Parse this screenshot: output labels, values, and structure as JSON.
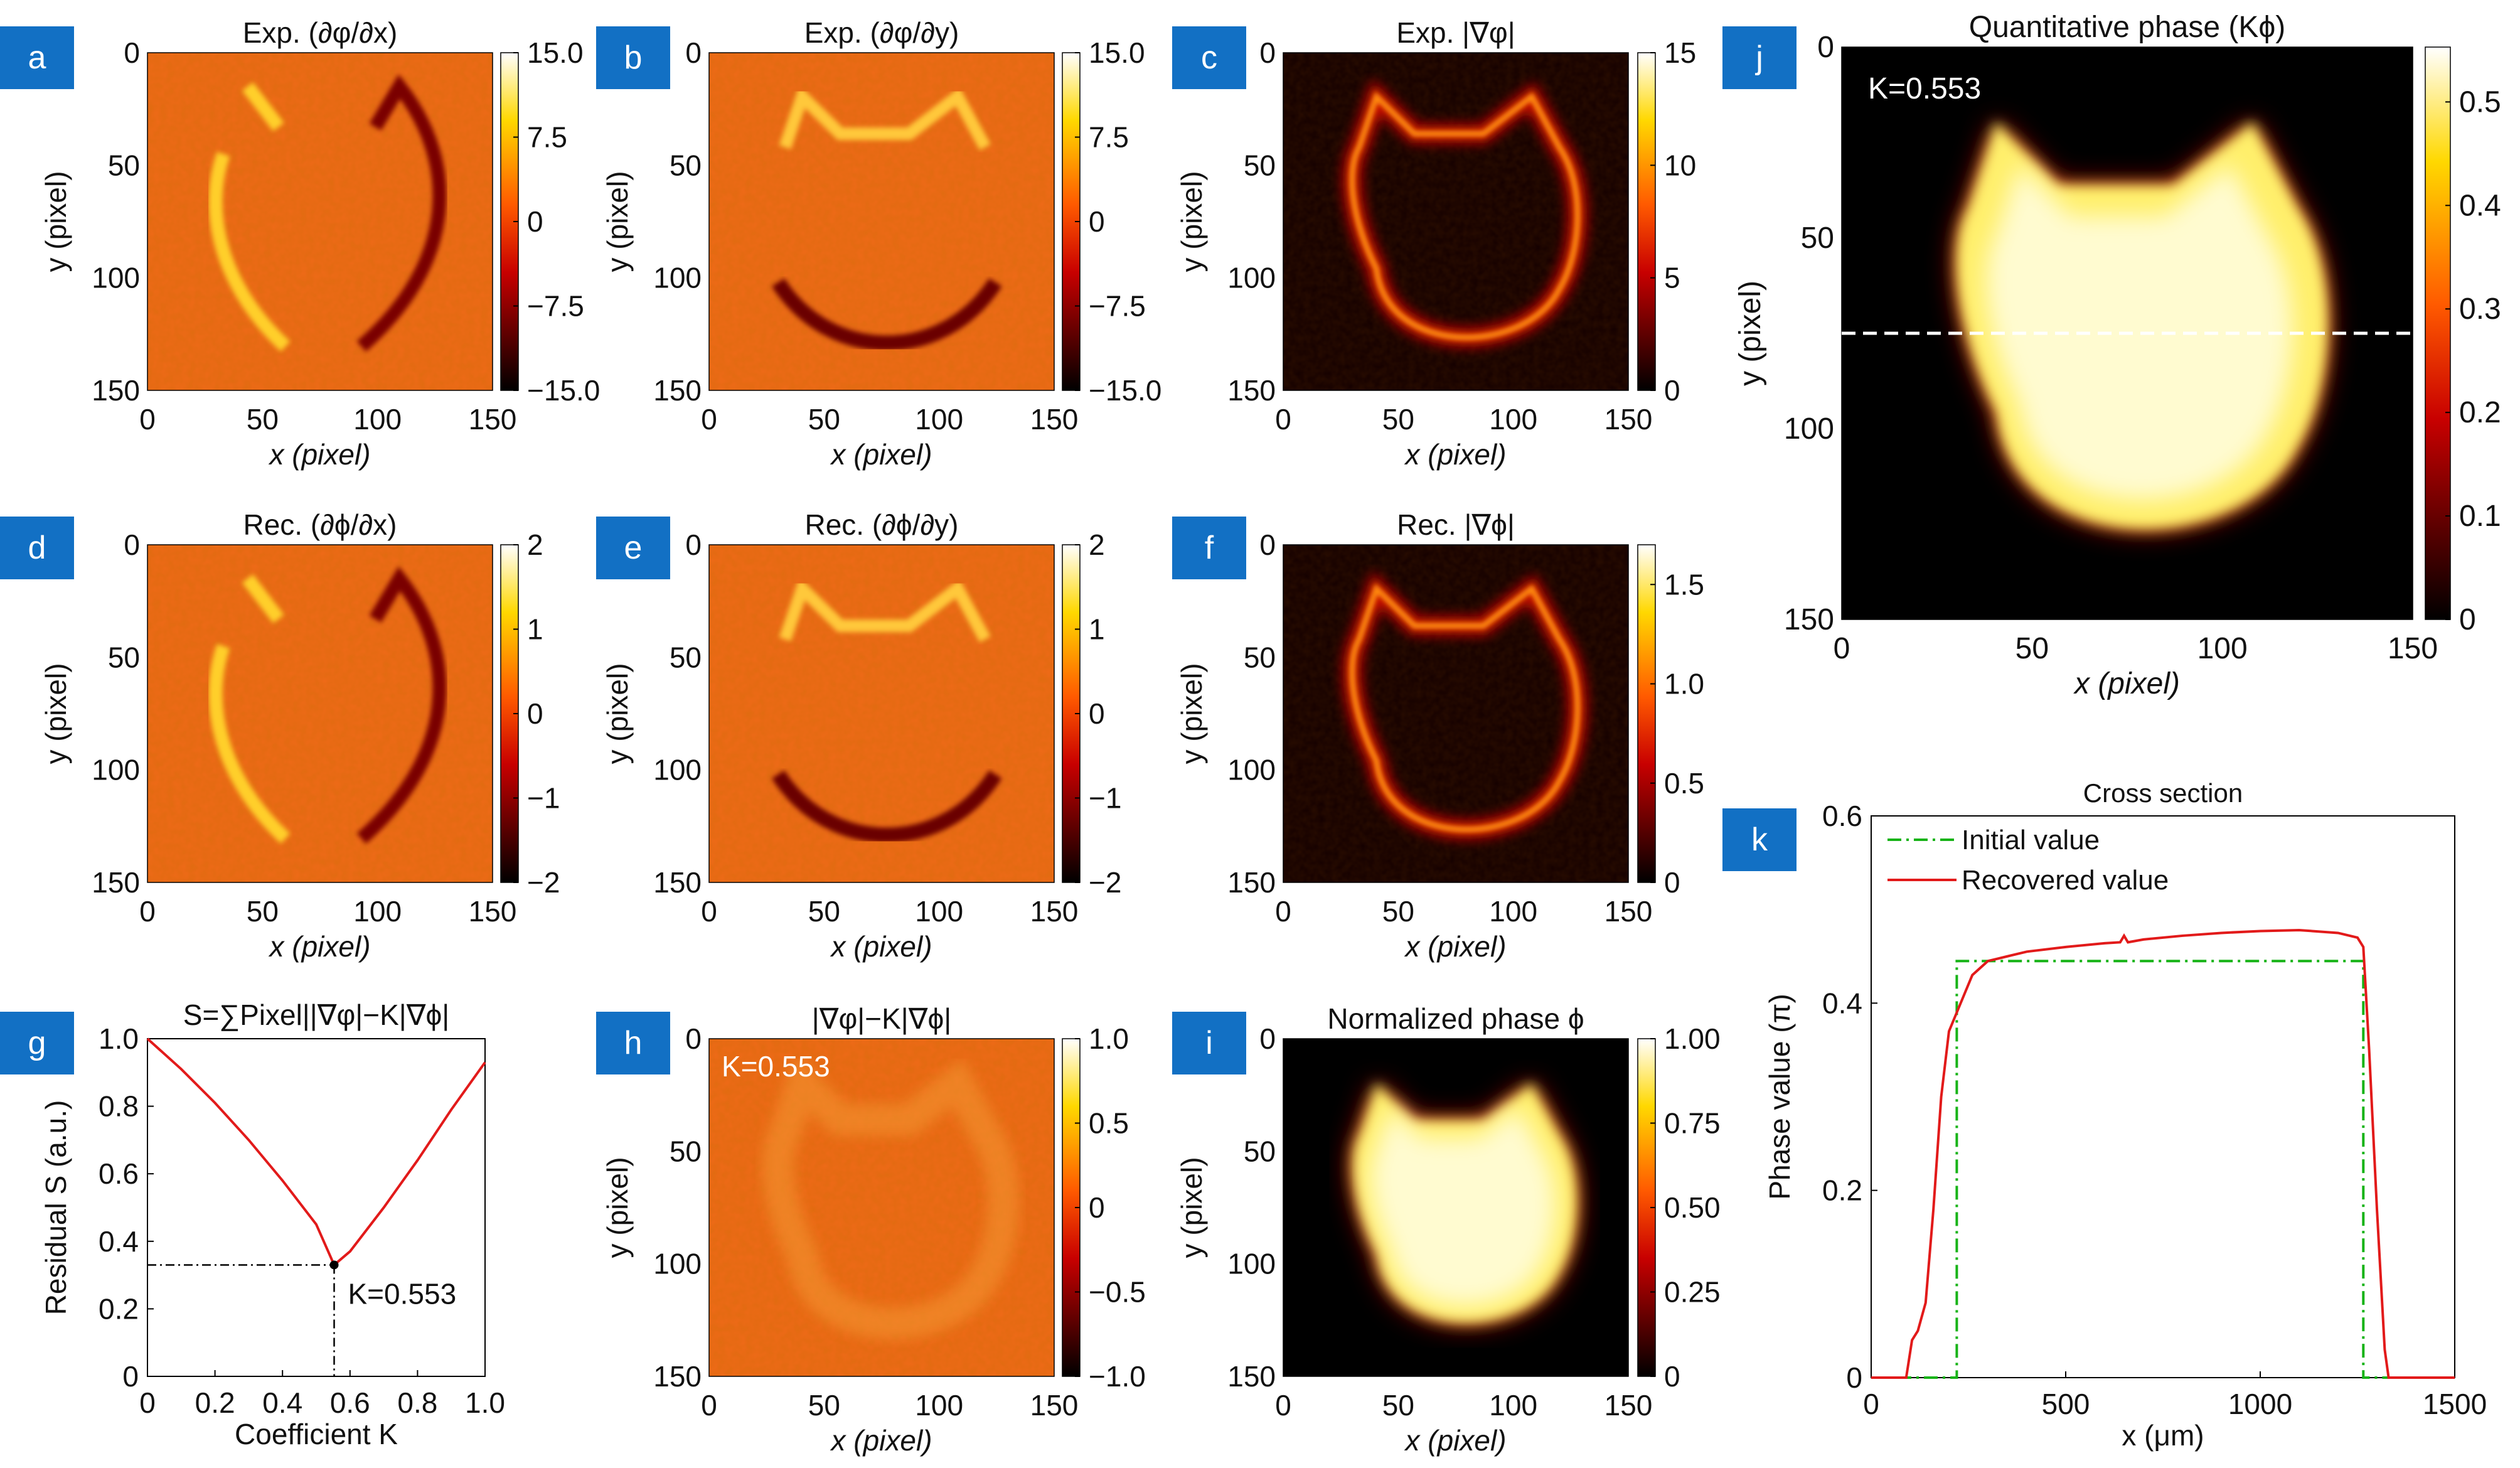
{
  "figure": {
    "panel_letters": [
      "a",
      "b",
      "c",
      "d",
      "e",
      "f",
      "g",
      "h",
      "i",
      "j",
      "k"
    ],
    "k_label": "K=0.553"
  },
  "chart_data": [
    {
      "panel": "a",
      "type": "heatmap",
      "title": "Exp. (∂φ/∂x)",
      "xlabel": "x (pixel)",
      "ylabel": "y (pixel)",
      "xlim": [
        0,
        150
      ],
      "ylim": [
        150,
        0
      ],
      "xticks": [
        0,
        50,
        100,
        150
      ],
      "yticks": [
        0,
        50,
        100,
        150
      ],
      "colorbar": {
        "range": [
          -15,
          15
        ],
        "ticks": [
          "15.0",
          "7.5",
          "0",
          "−7.5",
          "−15.0"
        ]
      },
      "pattern": "gradient-x"
    },
    {
      "panel": "b",
      "type": "heatmap",
      "title": "Exp. (∂φ/∂y)",
      "xlabel": "x (pixel)",
      "ylabel": "y (pixel)",
      "xlim": [
        0,
        150
      ],
      "ylim": [
        150,
        0
      ],
      "xticks": [
        0,
        50,
        100,
        150
      ],
      "yticks": [
        0,
        50,
        100,
        150
      ],
      "colorbar": {
        "range": [
          -15,
          15
        ],
        "ticks": [
          "15.0",
          "7.5",
          "0",
          "−7.5",
          "−15.0"
        ]
      },
      "pattern": "gradient-y"
    },
    {
      "panel": "c",
      "type": "heatmap",
      "title": "Exp. |∇φ|",
      "xlabel": "x (pixel)",
      "ylabel": "y (pixel)",
      "xlim": [
        0,
        150
      ],
      "ylim": [
        150,
        0
      ],
      "xticks": [
        0,
        50,
        100,
        150
      ],
      "yticks": [
        0,
        50,
        100,
        150
      ],
      "colorbar": {
        "range": [
          0,
          15
        ],
        "ticks": [
          "15",
          "10",
          "5",
          "0"
        ]
      },
      "pattern": "magnitude"
    },
    {
      "panel": "d",
      "type": "heatmap",
      "title": "Rec. (∂ϕ/∂x)",
      "xlabel": "x (pixel)",
      "ylabel": "y (pixel)",
      "xlim": [
        0,
        150
      ],
      "ylim": [
        150,
        0
      ],
      "xticks": [
        0,
        50,
        100,
        150
      ],
      "yticks": [
        0,
        50,
        100,
        150
      ],
      "colorbar": {
        "range": [
          -2,
          2
        ],
        "ticks": [
          "2",
          "1",
          "0",
          "−1",
          "−2"
        ]
      },
      "pattern": "gradient-x"
    },
    {
      "panel": "e",
      "type": "heatmap",
      "title": "Rec. (∂ϕ/∂y)",
      "xlabel": "x (pixel)",
      "ylabel": "y (pixel)",
      "xlim": [
        0,
        150
      ],
      "ylim": [
        150,
        0
      ],
      "xticks": [
        0,
        50,
        100,
        150
      ],
      "yticks": [
        0,
        50,
        100,
        150
      ],
      "colorbar": {
        "range": [
          -2,
          2
        ],
        "ticks": [
          "2",
          "1",
          "0",
          "−1",
          "−2"
        ]
      },
      "pattern": "gradient-y"
    },
    {
      "panel": "f",
      "type": "heatmap",
      "title": "Rec. |∇ϕ|",
      "xlabel": "x (pixel)",
      "ylabel": "y (pixel)",
      "xlim": [
        0,
        150
      ],
      "ylim": [
        150,
        0
      ],
      "xticks": [
        0,
        50,
        100,
        150
      ],
      "yticks": [
        0,
        50,
        100,
        150
      ],
      "colorbar": {
        "range": [
          0,
          1.7
        ],
        "ticks": [
          "1.5",
          "1.0",
          "0.5",
          "0"
        ]
      },
      "pattern": "magnitude"
    },
    {
      "panel": "g",
      "type": "line",
      "title": "S=∑Pixel||∇φ|−K|∇ϕ|",
      "xlabel": "Coefficient K",
      "ylabel": "Residual S (a.u.)",
      "xlim": [
        0,
        1
      ],
      "ylim": [
        0,
        1
      ],
      "xticks": [
        "0",
        "0.2",
        "0.4",
        "0.6",
        "0.8",
        "1.0"
      ],
      "yticks": [
        "0",
        "0.2",
        "0.4",
        "0.6",
        "0.8",
        "1.0"
      ],
      "series": [
        {
          "x": [
            0,
            0.1,
            0.2,
            0.3,
            0.4,
            0.5,
            0.553,
            0.6,
            0.7,
            0.8,
            0.9,
            1.0
          ],
          "y": [
            1.0,
            0.91,
            0.81,
            0.7,
            0.58,
            0.45,
            0.33,
            0.37,
            0.5,
            0.64,
            0.79,
            0.93
          ]
        }
      ],
      "annotation": {
        "text": "K=0.553",
        "x": 0.553,
        "y": 0.33
      }
    },
    {
      "panel": "h",
      "type": "heatmap",
      "title": "|∇φ|−K|∇ϕ|",
      "annotation": "K=0.553",
      "xlabel": "x (pixel)",
      "ylabel": "y (pixel)",
      "xlim": [
        0,
        150
      ],
      "ylim": [
        150,
        0
      ],
      "xticks": [
        0,
        50,
        100,
        150
      ],
      "yticks": [
        0,
        50,
        100,
        150
      ],
      "colorbar": {
        "range": [
          -1,
          1
        ],
        "ticks": [
          "1.0",
          "0.5",
          "0",
          "−0.5",
          "−1.0"
        ]
      },
      "pattern": "residual"
    },
    {
      "panel": "i",
      "type": "heatmap",
      "title": "Normalized phase ϕ",
      "xlabel": "x (pixel)",
      "ylabel": "y (pixel)",
      "xlim": [
        0,
        150
      ],
      "ylim": [
        150,
        0
      ],
      "xticks": [
        0,
        50,
        100,
        150
      ],
      "yticks": [
        0,
        50,
        100,
        150
      ],
      "colorbar": {
        "range": [
          0,
          1
        ],
        "ticks": [
          "1.00",
          "0.75",
          "0.50",
          "0.25",
          "0"
        ]
      },
      "pattern": "phase"
    },
    {
      "panel": "j",
      "type": "heatmap",
      "title": "Quantitative phase (Kϕ)",
      "annotation": "K=0.553",
      "xlabel": "x (pixel)",
      "ylabel": "y (pixel)",
      "xlim": [
        0,
        150
      ],
      "ylim": [
        150,
        0
      ],
      "xticks": [
        0,
        50,
        100,
        150
      ],
      "yticks": [
        0,
        50,
        100,
        150
      ],
      "colorbar": {
        "range": [
          0,
          0.553
        ],
        "ticks": [
          "0.5",
          "0.4",
          "0.3",
          "0.2",
          "0.1",
          "0"
        ]
      },
      "pattern": "phase",
      "cross_section_y": 75
    },
    {
      "panel": "k",
      "type": "line",
      "title": "Cross section",
      "xlabel": "x (μm)",
      "ylabel": "Phase value (π)",
      "xlim": [
        0,
        1500
      ],
      "ylim": [
        0,
        0.6
      ],
      "xticks": [
        "0",
        "500",
        "1000",
        "1500"
      ],
      "yticks": [
        "0",
        "0.2",
        "0.4",
        "0.6"
      ],
      "legend": "top-left",
      "series": [
        {
          "name": "Initial value",
          "color": "#17b317",
          "dash": "dashdot",
          "x": [
            0,
            220,
            220,
            1265,
            1265,
            1500
          ],
          "y": [
            0,
            0,
            0.445,
            0.445,
            0,
            0
          ]
        },
        {
          "name": "Recovered value",
          "color": "#e21a1a",
          "x": [
            0,
            90,
            105,
            120,
            140,
            160,
            180,
            200,
            220,
            240,
            260,
            300,
            350,
            400,
            500,
            600,
            640,
            650,
            660,
            700,
            800,
            900,
            1000,
            1100,
            1200,
            1250,
            1265,
            1280,
            1300,
            1320,
            1330,
            1500
          ],
          "y": [
            0,
            0,
            0.04,
            0.05,
            0.08,
            0.18,
            0.3,
            0.37,
            0.39,
            0.41,
            0.43,
            0.445,
            0.45,
            0.455,
            0.46,
            0.464,
            0.465,
            0.472,
            0.465,
            0.468,
            0.472,
            0.475,
            0.477,
            0.478,
            0.475,
            0.47,
            0.46,
            0.35,
            0.18,
            0.03,
            0,
            0
          ]
        }
      ]
    }
  ]
}
